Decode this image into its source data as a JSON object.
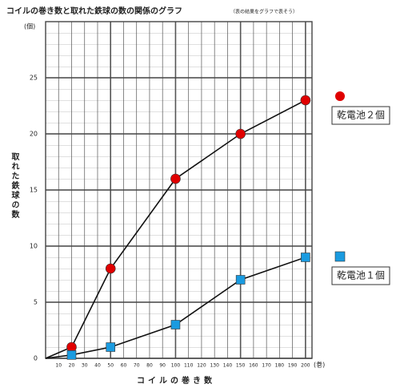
{
  "chart_data": {
    "type": "line",
    "title": "コイルの巻き数と取れた鉄球の数の関係のグラフ",
    "subtitle": "（表の結果をグラフで表そう）",
    "y_label": "取れた鉄球の数",
    "y_unit": "(個)",
    "x_label": "コイルの巻き数",
    "x_unit": "(巻)",
    "x": [
      0,
      20,
      50,
      100,
      150,
      200
    ],
    "series": [
      {
        "name": "乾電池２個",
        "color": "#e00000",
        "marker": "circle",
        "values": [
          0,
          1,
          8,
          16,
          20,
          23
        ]
      },
      {
        "name": "乾電池１個",
        "color": "#1a9be0",
        "marker": "square",
        "values": [
          0,
          0.3,
          1,
          3,
          7,
          9
        ]
      }
    ],
    "xlim": [
      0,
      205
    ],
    "xticks": [
      10,
      20,
      30,
      40,
      50,
      60,
      70,
      80,
      90,
      100,
      110,
      120,
      130,
      140,
      150,
      160,
      170,
      180,
      190,
      200
    ],
    "ylim": [
      0,
      30
    ],
    "yticks": [
      0,
      5,
      10,
      15,
      20,
      25
    ],
    "grid": true
  }
}
